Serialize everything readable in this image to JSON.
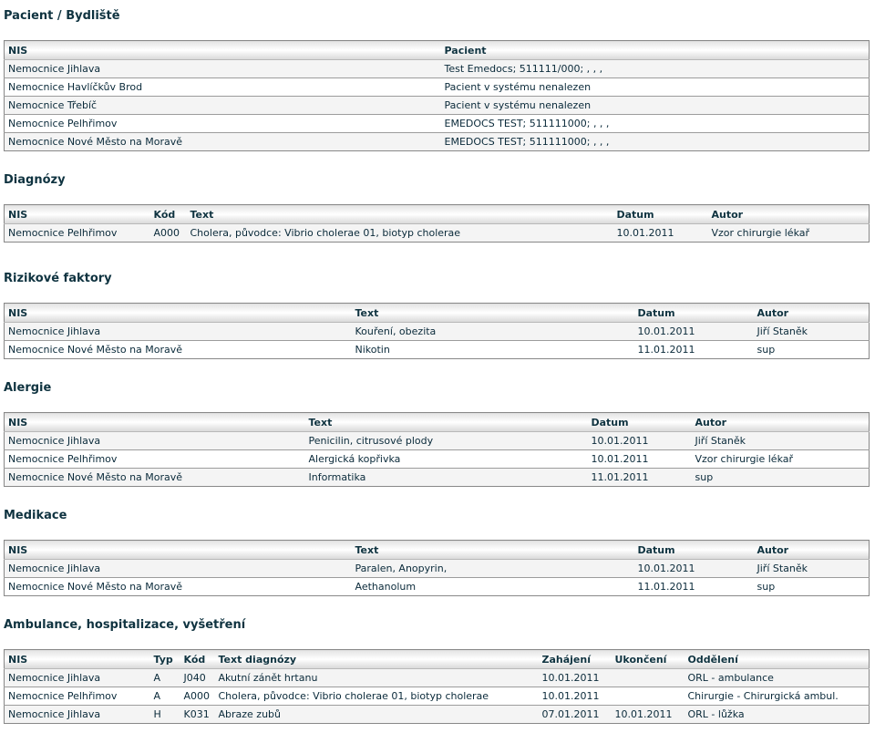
{
  "patient": {
    "title": "Pacient / Bydliště",
    "columns": [
      "NIS",
      "Pacient"
    ],
    "rows": [
      [
        "Nemocnice Jihlava",
        "Test Emedocs; 511111/000; , , ,"
      ],
      [
        "Nemocnice Havlíčkův Brod",
        "Pacient v systému nenalezen"
      ],
      [
        "Nemocnice Třebíč",
        "Pacient v systému nenalezen"
      ],
      [
        "Nemocnice Pelhřimov",
        "EMEDOCS TEST; 511111000; , , ,"
      ],
      [
        "Nemocnice Nové Město na Moravě",
        "EMEDOCS TEST; 511111000; , , ,"
      ]
    ]
  },
  "diagnoses": {
    "title": "Diagnózy",
    "columns": [
      "NIS",
      "Kód",
      "Text",
      "Datum",
      "Autor"
    ],
    "rows": [
      [
        "Nemocnice Pelhřimov",
        "A000",
        "Cholera, původce: Vibrio cholerae 01, biotyp cholerae",
        "10.01.2011",
        "Vzor chirurgie lékař"
      ]
    ]
  },
  "risk_factors": {
    "title": "Rizikové faktory",
    "columns": [
      "NIS",
      "Text",
      "Datum",
      "Autor"
    ],
    "rows": [
      [
        "Nemocnice Jihlava",
        "Kouření, obezita",
        "10.01.2011",
        "Jiří Staněk"
      ],
      [
        "Nemocnice Nové Město na Moravě",
        "Nikotin",
        "11.01.2011",
        "sup"
      ]
    ]
  },
  "allergies": {
    "title": "Alergie",
    "columns": [
      "NIS",
      "Text",
      "Datum",
      "Autor"
    ],
    "rows": [
      [
        "Nemocnice Jihlava",
        "Penicilin, citrusové plody",
        "10.01.2011",
        "Jiří Staněk"
      ],
      [
        "Nemocnice Pelhřimov",
        "Alergická kopřivka",
        "10.01.2011",
        "Vzor chirurgie lékař"
      ],
      [
        "Nemocnice Nové Město na Moravě",
        "Informatika",
        "11.01.2011",
        "sup"
      ]
    ]
  },
  "medication": {
    "title": "Medikace",
    "columns": [
      "NIS",
      "Text",
      "Datum",
      "Autor"
    ],
    "rows": [
      [
        "Nemocnice Jihlava",
        "Paralen, Anopyrin,",
        "10.01.2011",
        "Jiří Staněk"
      ],
      [
        "Nemocnice Nové Město na Moravě",
        "Aethanolum",
        "11.01.2011",
        "sup"
      ]
    ]
  },
  "ambulance": {
    "title": "Ambulance, hospitalizace, vyšetření",
    "columns": [
      "NIS",
      "Typ",
      "Kód",
      "Text diagnózy",
      "Zahájení",
      "Ukončení",
      "Oddělení"
    ],
    "rows": [
      [
        "Nemocnice Jihlava",
        "A",
        "J040",
        "Akutní zánět hrtanu",
        "10.01.2011",
        "",
        "ORL - ambulance"
      ],
      [
        "Nemocnice Pelhřimov",
        "A",
        "A000",
        "Cholera, původce: Vibrio cholerae 01, biotyp cholerae",
        "10.01.2011",
        "",
        "Chirurgie - Chirurgická ambul."
      ],
      [
        "Nemocnice Jihlava",
        "H",
        "K031",
        "Abraze zubů",
        "07.01.2011",
        "10.01.2011",
        "ORL - lůžka"
      ]
    ]
  }
}
